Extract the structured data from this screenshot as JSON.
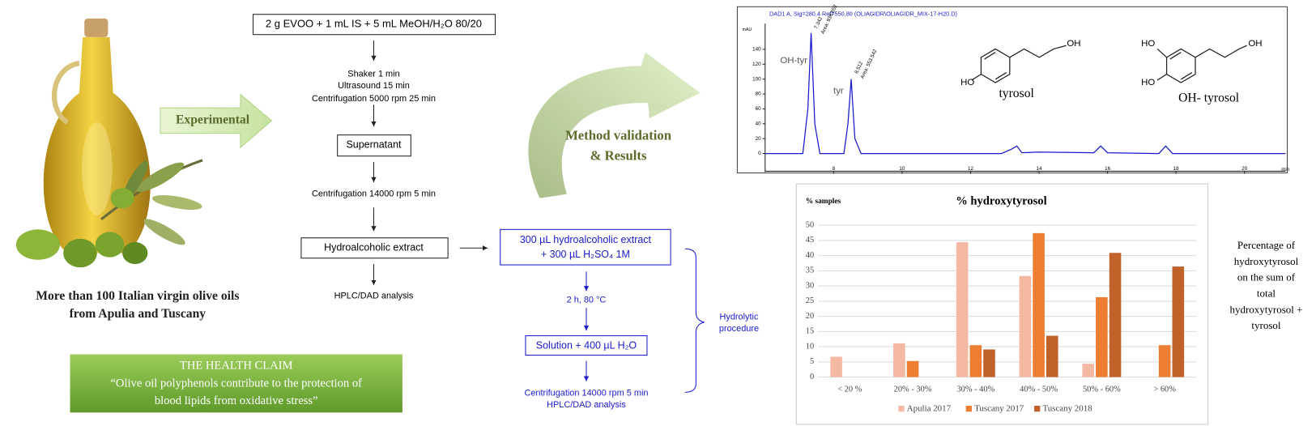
{
  "left": {
    "caption": [
      "More than 100 Italian virgin olive oils",
      "from Apulia and Tuscany"
    ],
    "arrow_label": "Experimental",
    "health_claim": {
      "title": "THE HEALTH CLAIM",
      "text": [
        "“Olive oil polyphenols contribute to the protection of",
        "blood lipids from oxidative stress”"
      ]
    }
  },
  "extraction": {
    "start": "2 g EVOO + 1 mL IS + 5 mL MeOH/H₂O 80/20",
    "steps1": [
      "Shaker 1 min",
      "Ultrasound 15 min",
      "Centrifugation 5000 rpm 25 min"
    ],
    "supernatant": "Supernatant",
    "step2": "Centrifugation 14000 rpm 5 min",
    "extract": "Hydroalcoholic extract",
    "analysis": "HPLC/DAD analysis"
  },
  "hydrolysis": {
    "box1": [
      "300 µL hydroalcoholic extract",
      "+ 300 µL H₂SO₄ 1M"
    ],
    "step1": "2 h, 80 °C",
    "box2": "Solution + 400 µL H₂O",
    "steps2": [
      "Centrifugation 14000 rpm 5 min",
      "HPLC/DAD analysis"
    ],
    "label": [
      "Hydrolytic",
      "procedure"
    ]
  },
  "validation_label": [
    "Method validation",
    "& Results"
  ],
  "molecules": {
    "tyrosol": {
      "name": "tyrosol",
      "atoms": [
        "HO",
        "OH"
      ]
    },
    "hydroxytyrosol": {
      "name": "OH- tyrosol",
      "atoms": [
        "HO",
        "HO",
        "OH"
      ]
    }
  },
  "side_note": [
    "Percentage of",
    "hydroxytyrosol",
    "on the sum of",
    "total",
    "hydroxytyrosol +",
    "tyrosol"
  ],
  "chart_data": [
    {
      "type": "line",
      "title": "DAD1 A, Sig=280,4 Ref=550,80 (OLIAGIDR\\OLIAGIDR_MIX-17-H20.D)",
      "y_label": "mAU",
      "x_label": "min",
      "annotations": [
        "OH-tyr",
        "tyr"
      ],
      "peak_labels": [
        "7.342",
        "Area: 936.652",
        "8.512",
        "Area: 553.542"
      ],
      "x": [
        6,
        7.1,
        7.25,
        7.342,
        7.45,
        7.6,
        8.3,
        8.42,
        8.512,
        8.62,
        8.8,
        12.9,
        13.2,
        13.35,
        13.5,
        14,
        15.6,
        15.8,
        16,
        17.5,
        17.7,
        17.9,
        21.2
      ],
      "values": [
        0,
        0,
        60,
        162,
        40,
        0,
        0,
        40,
        100,
        20,
        0,
        0,
        6,
        10,
        1,
        2,
        1,
        10,
        1,
        0,
        10,
        0,
        0
      ],
      "color": "#1a1acc",
      "xlim": [
        6,
        21.2
      ],
      "ylim": [
        -25,
        195
      ],
      "xticks": [
        8,
        10,
        12,
        14,
        16,
        18,
        20
      ],
      "yticks": [
        0,
        20,
        40,
        60,
        80,
        100,
        120,
        140
      ]
    },
    {
      "type": "bar",
      "title": "% hydroxytyrosol",
      "y_label": "% samples",
      "categories": [
        "< 20 %",
        "20% - 30%",
        "30% - 40%",
        "40% - 50%",
        "50% - 60%",
        "> 60%"
      ],
      "series": [
        {
          "name": "Apulia 2017",
          "color": "#f4b9a2",
          "values": [
            6.7,
            11.1,
            44.4,
            33.3,
            4.4,
            null
          ]
        },
        {
          "name": "Tuscany 2017",
          "color": "#ed7d31",
          "values": [
            null,
            5.3,
            10.5,
            47.4,
            26.3,
            10.5
          ]
        },
        {
          "name": "Tuscany 2018",
          "color": "#c0622a",
          "values": [
            null,
            null,
            9.1,
            13.6,
            40.9,
            36.4
          ]
        }
      ],
      "ylim": [
        0,
        50
      ],
      "yticks": [
        0,
        5,
        10,
        15,
        20,
        25,
        30,
        35,
        40,
        45,
        50
      ],
      "grid": true,
      "legend": "bottom"
    }
  ]
}
